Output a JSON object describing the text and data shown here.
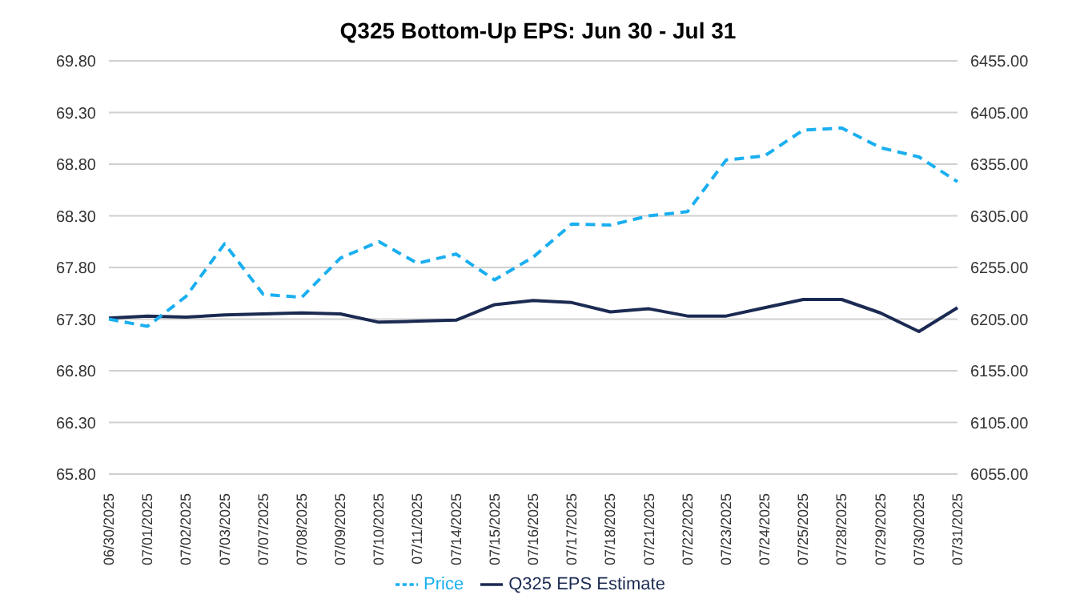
{
  "chart_data": {
    "type": "line",
    "title": "Q325 Bottom-Up EPS: Jun 30 - Jul 31",
    "categories": [
      "06/30/2025",
      "07/01/2025",
      "07/02/2025",
      "07/03/2025",
      "07/07/2025",
      "07/08/2025",
      "07/09/2025",
      "07/10/2025",
      "07/11/2025",
      "07/14/2025",
      "07/15/2025",
      "07/16/2025",
      "07/17/2025",
      "07/18/2025",
      "07/21/2025",
      "07/22/2025",
      "07/23/2025",
      "07/24/2025",
      "07/25/2025",
      "07/28/2025",
      "07/29/2025",
      "07/30/2025",
      "07/31/2025"
    ],
    "series": [
      {
        "name": "Q325 EPS Estimate",
        "color": "#1b2a52",
        "line_style": "solid",
        "values": [
          67.31,
          67.33,
          67.32,
          67.34,
          67.35,
          67.36,
          67.35,
          67.27,
          67.28,
          67.29,
          67.44,
          67.48,
          67.46,
          67.37,
          67.4,
          67.33,
          67.33,
          67.41,
          67.49,
          67.49,
          67.36,
          67.18,
          67.41
        ]
      },
      {
        "name": "Price",
        "color": "#1aaff0",
        "line_style": "dashed",
        "axis": "y2",
        "values": [
          6205,
          6198,
          6227,
          6278,
          6229,
          6226,
          6264,
          6280,
          6259,
          6268,
          6243,
          6265,
          6297,
          6296,
          6305,
          6309,
          6359,
          6363,
          6388,
          6390,
          6371,
          6362,
          6338
        ]
      }
    ],
    "ylim": [
      65.8,
      69.8
    ],
    "yticks": [
      {
        "value": 65.8,
        "label": "65.80"
      },
      {
        "value": 66.3,
        "label": "66.30"
      },
      {
        "value": 66.8,
        "label": "66.80"
      },
      {
        "value": 67.3,
        "label": "67.30"
      },
      {
        "value": 67.8,
        "label": "67.80"
      },
      {
        "value": 68.3,
        "label": "68.30"
      },
      {
        "value": 68.8,
        "label": "68.80"
      },
      {
        "value": 69.3,
        "label": "69.30"
      },
      {
        "value": 69.8,
        "label": "69.80"
      }
    ],
    "y2lim": [
      6055,
      6455
    ],
    "y2ticks": [
      {
        "value": 6055,
        "label": "6055.00"
      },
      {
        "value": 6105,
        "label": "6105.00"
      },
      {
        "value": 6155,
        "label": "6155.00"
      },
      {
        "value": 6205,
        "label": "6205.00"
      },
      {
        "value": 6255,
        "label": "6255.00"
      },
      {
        "value": 6305,
        "label": "6305.00"
      },
      {
        "value": 6355,
        "label": "6355.00"
      },
      {
        "value": 6405,
        "label": "6405.00"
      },
      {
        "value": 6455,
        "label": "6455.00"
      }
    ],
    "grid": "y",
    "legend": "bottom",
    "marker": "none"
  }
}
